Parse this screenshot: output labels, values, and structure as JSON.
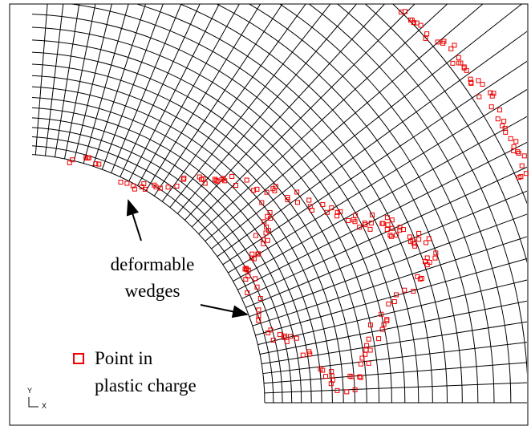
{
  "annotation": {
    "lines": [
      "deformable",
      "wedges"
    ]
  },
  "legend": {
    "lines": [
      "Point in",
      "plastic charge"
    ]
  },
  "axes": {
    "y": "Y",
    "x": "X"
  }
}
